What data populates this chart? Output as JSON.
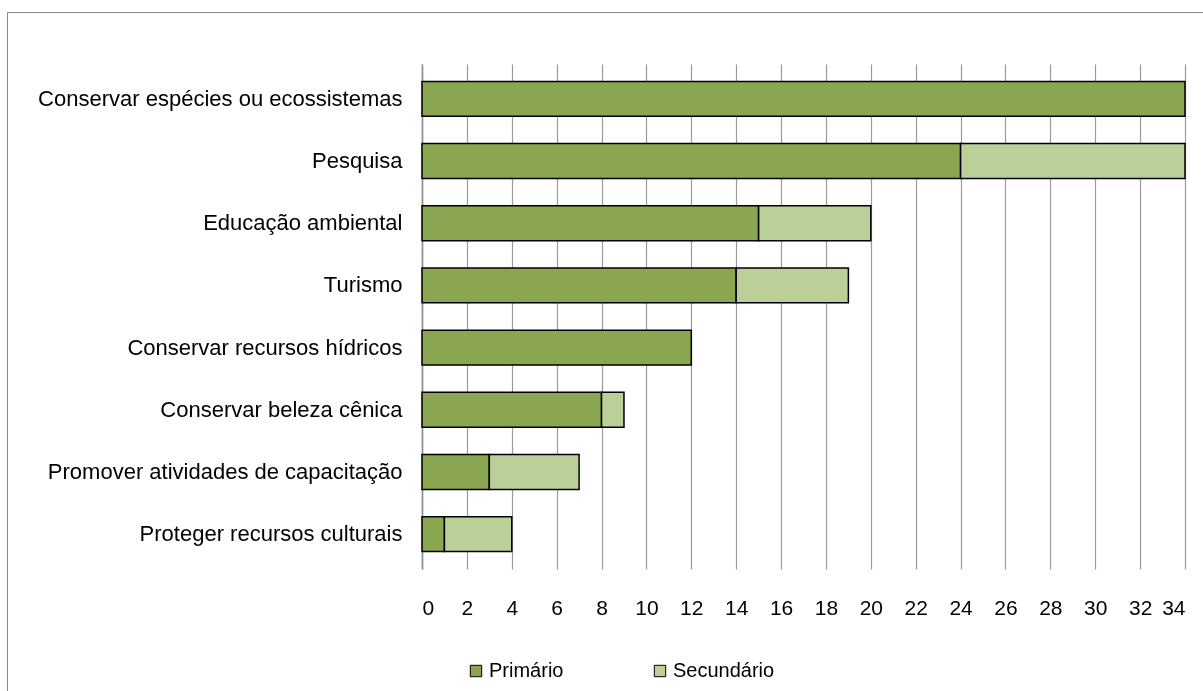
{
  "chart_data": {
    "type": "bar",
    "orientation": "horizontal",
    "stacked": true,
    "categories": [
      "Conservar espécies ou ecossistemas",
      "Pesquisa",
      "Educação ambiental",
      "Turismo",
      "Conservar recursos hídricos",
      "Conservar beleza cênica",
      "Promover atividades de capacitação",
      "Proteger recursos culturais"
    ],
    "series": [
      {
        "name": "Primário",
        "color": "#8ba650",
        "values": [
          34,
          24,
          15,
          14,
          12,
          8,
          3,
          1
        ]
      },
      {
        "name": "Secundário",
        "color": "#bbcf99",
        "values": [
          null,
          10,
          5,
          5,
          null,
          1,
          4,
          3
        ]
      }
    ],
    "xlim": [
      0,
      34
    ],
    "xticks": [
      0,
      2,
      4,
      6,
      8,
      10,
      12,
      14,
      16,
      18,
      20,
      22,
      24,
      26,
      28,
      30,
      32,
      34
    ],
    "grid": "x",
    "legend": "bottom"
  }
}
